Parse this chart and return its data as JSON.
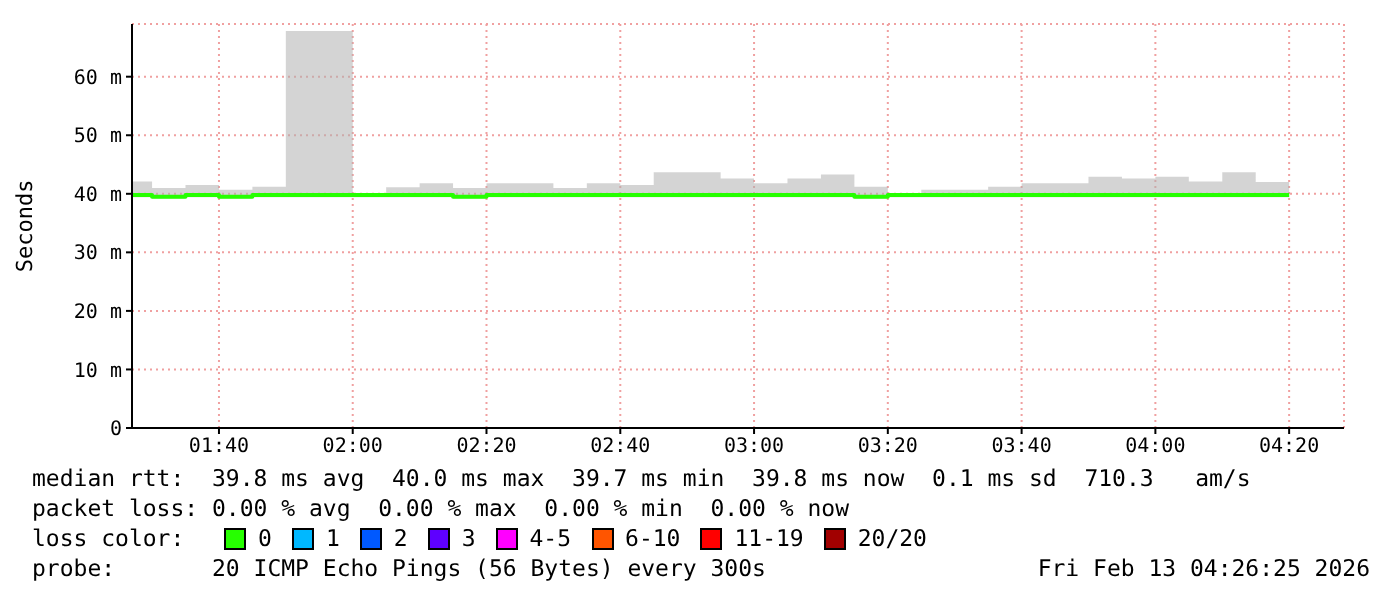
{
  "chart_data": {
    "type": "step",
    "ylabel": "Seconds",
    "legend_title": "loss color:",
    "legend": "bottom",
    "grid": true,
    "x": [
      1.45,
      1.5,
      1.5833,
      1.6667,
      1.75,
      1.8333,
      1.9167,
      2,
      2.0833,
      2.1667,
      2.25,
      2.3333,
      2.4167,
      2.5,
      2.5833,
      2.6667,
      2.75,
      2.8333,
      2.9167,
      3,
      3.0833,
      3.1667,
      3.25,
      3.3333,
      3.4167,
      3.5,
      3.5833,
      3.6667,
      3.75,
      3.8333,
      3.9167,
      4,
      4.0833,
      4.1667,
      4.25,
      4.3333
    ],
    "xlim": [
      1.45,
      4.47
    ],
    "xticks": [
      {
        "value": 1.6667,
        "label": "01:40"
      },
      {
        "value": 2,
        "label": "02:00"
      },
      {
        "value": 2.3333,
        "label": "02:20"
      },
      {
        "value": 2.6667,
        "label": "02:40"
      },
      {
        "value": 3,
        "label": "03:00"
      },
      {
        "value": 3.3333,
        "label": "03:20"
      },
      {
        "value": 3.6667,
        "label": "03:40"
      },
      {
        "value": 4,
        "label": "04:00"
      },
      {
        "value": 4.3333,
        "label": "04:20"
      }
    ],
    "ylim": [
      0,
      69
    ],
    "yticks": [
      0,
      {
        "value": 10,
        "label": "10 m"
      },
      {
        "value": 20,
        "label": "20 m"
      },
      {
        "value": 30,
        "label": "30 m"
      },
      {
        "value": 40,
        "label": "40 m"
      },
      {
        "value": 50,
        "label": "50 m"
      },
      {
        "value": 60,
        "label": "60 m"
      }
    ],
    "series": [
      {
        "name": "0",
        "color": "#26ff00",
        "values": [
          39.8,
          39.5,
          39.8,
          39.5,
          39.8,
          39.8,
          39.8,
          39.8,
          39.8,
          39.8,
          39.5,
          39.8,
          39.8,
          39.8,
          39.8,
          39.8,
          39.8,
          39.8,
          39.8,
          39.8,
          39.8,
          39.8,
          39.5,
          39.8,
          39.8,
          39.8,
          39.8,
          39.8,
          39.8,
          39.8,
          39.8,
          39.8,
          39.8,
          39.8,
          39.8,
          39.8
        ],
        "lower": [
          39.4,
          39.2,
          39.4,
          39.2,
          39.4,
          39.4,
          39.4,
          39.4,
          39.4,
          39.4,
          39.2,
          39.4,
          39.4,
          39.4,
          39.4,
          39.4,
          39.4,
          39.4,
          39.4,
          39.4,
          39.4,
          39.4,
          39.2,
          39.4,
          39.4,
          39.4,
          39.4,
          39.4,
          39.4,
          39.4,
          39.4,
          39.4,
          39.4,
          39.4,
          39.4,
          39.4
        ],
        "upper": [
          42.1,
          41,
          41.5,
          40.7,
          41.2,
          67.8,
          67.8,
          40.1,
          41.1,
          41.8,
          41,
          41.8,
          41.8,
          41,
          41.8,
          41.5,
          43.7,
          43.7,
          42.6,
          41.8,
          42.6,
          43.3,
          41.2,
          40,
          40.7,
          40.7,
          41.2,
          41.8,
          41.8,
          42.9,
          42.6,
          42.9,
          42.1,
          43.7,
          42,
          42
        ]
      },
      {
        "name": "1",
        "color": "#00b8ff",
        "values": [
          null,
          null,
          null,
          null,
          null,
          null,
          null,
          null,
          null,
          null,
          null,
          null,
          null,
          null,
          null,
          null,
          null,
          null,
          null,
          null,
          null,
          null,
          null,
          null,
          null,
          null,
          null,
          null,
          null,
          null,
          null,
          null,
          null,
          null,
          null,
          null
        ]
      },
      {
        "name": "2",
        "color": "#0059ff",
        "values": [
          null,
          null,
          null,
          null,
          null,
          null,
          null,
          null,
          null,
          null,
          null,
          null,
          null,
          null,
          null,
          null,
          null,
          null,
          null,
          null,
          null,
          null,
          null,
          null,
          null,
          null,
          null,
          null,
          null,
          null,
          null,
          null,
          null,
          null,
          null,
          null
        ]
      },
      {
        "name": "3",
        "color": "#5e00ff",
        "values": [
          null,
          null,
          null,
          null,
          null,
          null,
          null,
          null,
          null,
          null,
          null,
          null,
          null,
          null,
          null,
          null,
          null,
          null,
          null,
          null,
          null,
          null,
          null,
          null,
          null,
          null,
          null,
          null,
          null,
          null,
          null,
          null,
          null,
          null,
          null,
          null
        ]
      },
      {
        "name": "4-5",
        "color": "#ff00ff",
        "values": [
          null,
          null,
          null,
          null,
          null,
          null,
          null,
          null,
          null,
          null,
          null,
          null,
          null,
          null,
          null,
          null,
          null,
          null,
          null,
          null,
          null,
          null,
          null,
          null,
          null,
          null,
          null,
          null,
          null,
          null,
          null,
          null,
          null,
          null,
          null,
          null
        ]
      },
      {
        "name": "6-10",
        "color": "#ff5500",
        "values": [
          null,
          null,
          null,
          null,
          null,
          null,
          null,
          null,
          null,
          null,
          null,
          null,
          null,
          null,
          null,
          null,
          null,
          null,
          null,
          null,
          null,
          null,
          null,
          null,
          null,
          null,
          null,
          null,
          null,
          null,
          null,
          null,
          null,
          null,
          null,
          null
        ]
      },
      {
        "name": "11-19",
        "color": "#ff0000",
        "values": [
          null,
          null,
          null,
          null,
          null,
          null,
          null,
          null,
          null,
          null,
          null,
          null,
          null,
          null,
          null,
          null,
          null,
          null,
          null,
          null,
          null,
          null,
          null,
          null,
          null,
          null,
          null,
          null,
          null,
          null,
          null,
          null,
          null,
          null,
          null,
          null
        ]
      },
      {
        "name": "20/20",
        "color": "#a10000",
        "values": [
          null,
          null,
          null,
          null,
          null,
          null,
          null,
          null,
          null,
          null,
          null,
          null,
          null,
          null,
          null,
          null,
          null,
          null,
          null,
          null,
          null,
          null,
          null,
          null,
          null,
          null,
          null,
          null,
          null,
          null,
          null,
          null,
          null,
          null,
          null,
          null
        ]
      }
    ],
    "annotations": [
      "median rtt:  39.8 ms avg  40.0 ms max  39.7 ms min  39.8 ms now  0.1 ms sd  710.3   am/s",
      "packet loss: 0.00 % avg  0.00 % max  0.00 % min  0.00 % now",
      "probe:       20 ICMP Echo Pings (56 Bytes) every 300s",
      "Fri Feb 13 04:26:25 2026"
    ]
  }
}
